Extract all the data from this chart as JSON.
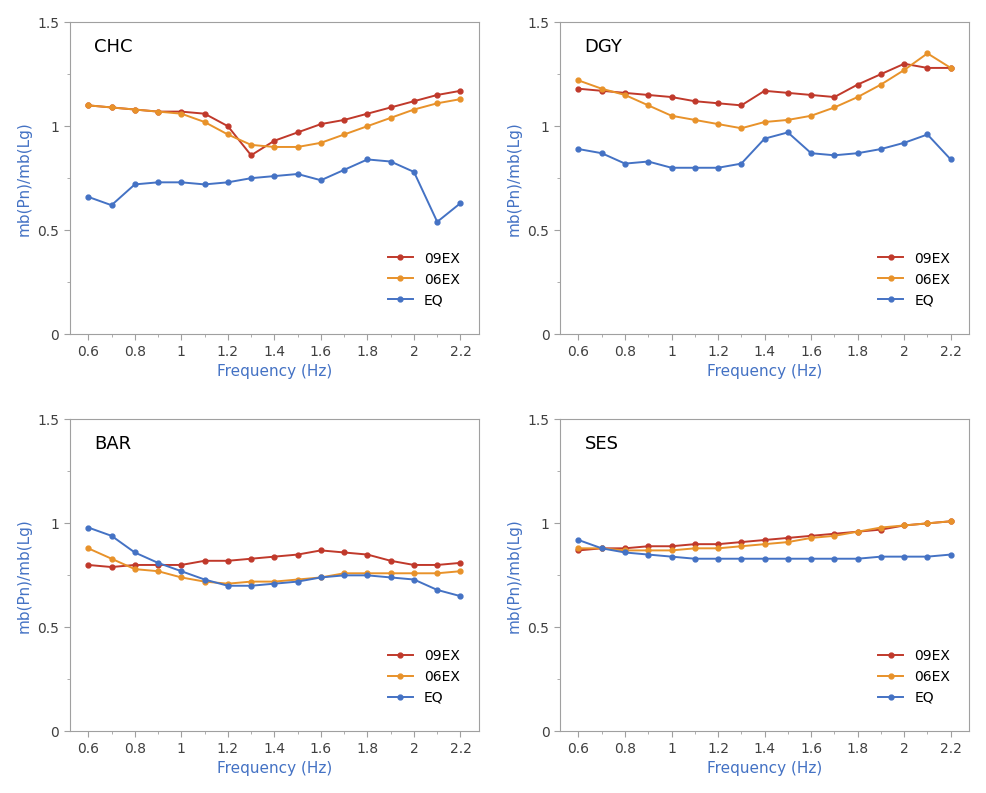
{
  "freq": [
    0.6,
    0.7,
    0.8,
    0.9,
    1.0,
    1.1,
    1.2,
    1.3,
    1.4,
    1.5,
    1.6,
    1.7,
    1.8,
    1.9,
    2.0,
    2.1,
    2.2
  ],
  "panels": [
    {
      "label": "CHC",
      "ex09": [
        1.1,
        1.09,
        1.08,
        1.07,
        1.07,
        1.06,
        1.0,
        0.86,
        0.93,
        0.97,
        1.01,
        1.03,
        1.06,
        1.09,
        1.12,
        1.15,
        1.17
      ],
      "ex06": [
        1.1,
        1.09,
        1.08,
        1.07,
        1.06,
        1.02,
        0.96,
        0.91,
        0.9,
        0.9,
        0.92,
        0.96,
        1.0,
        1.04,
        1.08,
        1.11,
        1.13
      ],
      "eq": [
        0.66,
        0.62,
        0.72,
        0.73,
        0.73,
        0.72,
        0.73,
        0.75,
        0.76,
        0.77,
        0.74,
        0.79,
        0.84,
        0.83,
        0.78,
        0.54,
        0.63
      ]
    },
    {
      "label": "DGY",
      "ex09": [
        1.18,
        1.17,
        1.16,
        1.15,
        1.14,
        1.12,
        1.11,
        1.1,
        1.17,
        1.16,
        1.15,
        1.14,
        1.2,
        1.25,
        1.3,
        1.28,
        1.28
      ],
      "ex06": [
        1.22,
        1.18,
        1.15,
        1.1,
        1.05,
        1.03,
        1.01,
        0.99,
        1.02,
        1.03,
        1.05,
        1.09,
        1.14,
        1.2,
        1.27,
        1.35,
        1.28
      ],
      "eq": [
        0.89,
        0.87,
        0.82,
        0.83,
        0.8,
        0.8,
        0.8,
        0.82,
        0.94,
        0.97,
        0.87,
        0.86,
        0.87,
        0.89,
        0.92,
        0.96,
        0.84
      ]
    },
    {
      "label": "BAR",
      "ex09": [
        0.8,
        0.79,
        0.8,
        0.8,
        0.8,
        0.82,
        0.82,
        0.83,
        0.84,
        0.85,
        0.87,
        0.86,
        0.85,
        0.82,
        0.8,
        0.8,
        0.81
      ],
      "ex06": [
        0.88,
        0.83,
        0.78,
        0.77,
        0.74,
        0.72,
        0.71,
        0.72,
        0.72,
        0.73,
        0.74,
        0.76,
        0.76,
        0.76,
        0.76,
        0.76,
        0.77
      ],
      "eq": [
        0.98,
        0.94,
        0.86,
        0.81,
        0.77,
        0.73,
        0.7,
        0.7,
        0.71,
        0.72,
        0.74,
        0.75,
        0.75,
        0.74,
        0.73,
        0.68,
        0.65
      ]
    },
    {
      "label": "SES",
      "ex09": [
        0.87,
        0.88,
        0.88,
        0.89,
        0.89,
        0.9,
        0.9,
        0.91,
        0.92,
        0.93,
        0.94,
        0.95,
        0.96,
        0.97,
        0.99,
        1.0,
        1.01
      ],
      "ex06": [
        0.88,
        0.88,
        0.87,
        0.87,
        0.87,
        0.88,
        0.88,
        0.89,
        0.9,
        0.91,
        0.93,
        0.94,
        0.96,
        0.98,
        0.99,
        1.0,
        1.01
      ],
      "eq": [
        0.92,
        0.88,
        0.86,
        0.85,
        0.84,
        0.83,
        0.83,
        0.83,
        0.83,
        0.83,
        0.83,
        0.83,
        0.83,
        0.84,
        0.84,
        0.84,
        0.85
      ]
    }
  ],
  "color_09ex": "#C0392B",
  "color_06ex": "#E8922A",
  "color_eq": "#4472C4",
  "label_color": "#4472C4",
  "tick_label_color": "#404040",
  "spine_color": "#A0A0A0",
  "ylabel": "mb(Pn)/mb(Lg)",
  "xlabel": "Frequency (Hz)",
  "ylim": [
    0.0,
    1.5
  ],
  "yticks": [
    0.0,
    0.5,
    1.0,
    1.5
  ],
  "xticks": [
    0.6,
    0.8,
    1.0,
    1.2,
    1.4,
    1.6,
    1.8,
    2.0,
    2.2
  ],
  "xlim": [
    0.52,
    2.28
  ],
  "legend_labels": [
    "09EX",
    "06EX",
    "EQ"
  ],
  "figsize": [
    9.86,
    7.93
  ],
  "dpi": 100
}
